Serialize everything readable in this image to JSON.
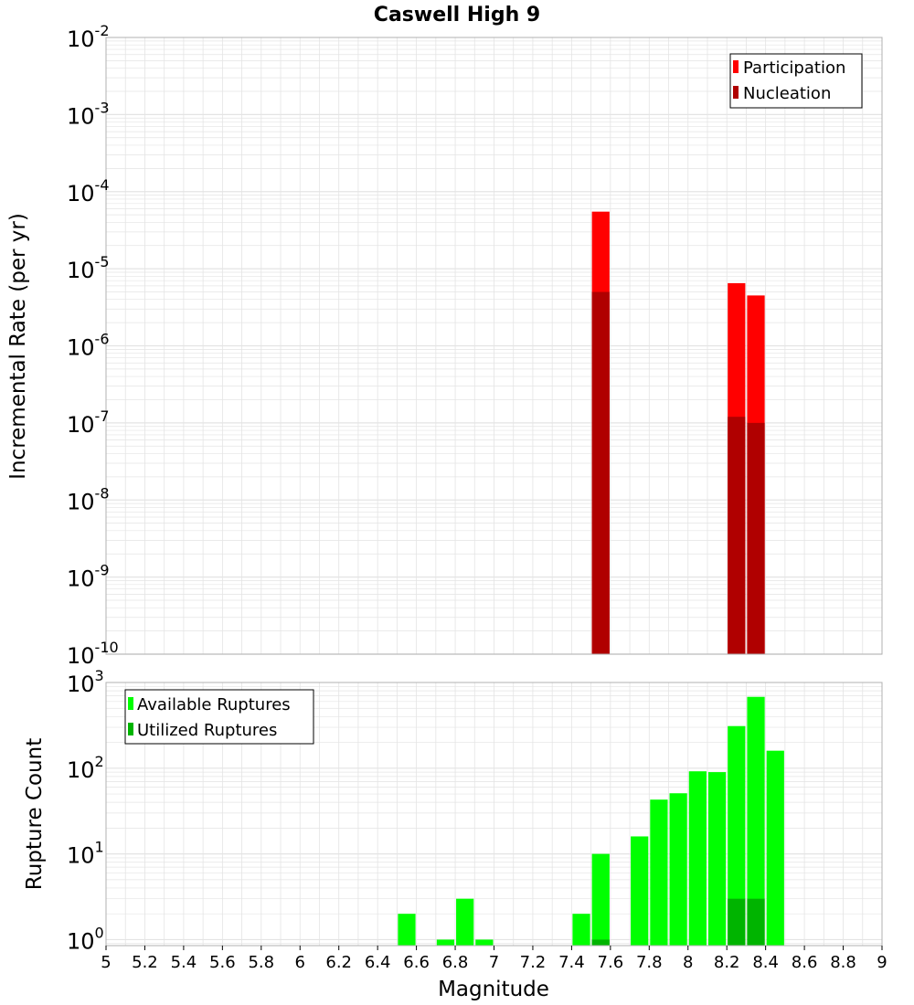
{
  "chart_data": {
    "title": "Caswell High 9",
    "xlabel": "Magnitude",
    "xlim": [
      5,
      9
    ],
    "x_ticks": [
      "5",
      "5.2",
      "5.4",
      "5.6",
      "5.8",
      "6",
      "6.2",
      "6.4",
      "6.6",
      "6.8",
      "7",
      "7.2",
      "7.4",
      "7.6",
      "7.8",
      "8",
      "8.2",
      "8.4",
      "8.6",
      "8.8",
      "9"
    ],
    "bin_width": 0.1,
    "colors": {
      "participation": "#ff0000",
      "nucleation": "#b00000",
      "available": "#00ff00",
      "utilized": "#00b400",
      "grid": "#e4e4e4",
      "frame": "#b0b0b0"
    },
    "panels": [
      {
        "type": "bar",
        "yscale": "log",
        "ylabel": "Incremental Rate (per yr)",
        "ylim_exp": [
          -10,
          -2
        ],
        "y_ticks": [
          {
            "base": "10",
            "exp": "-10"
          },
          {
            "base": "10",
            "exp": "-9"
          },
          {
            "base": "10",
            "exp": "-8"
          },
          {
            "base": "10",
            "exp": "-7"
          },
          {
            "base": "10",
            "exp": "-6"
          },
          {
            "base": "10",
            "exp": "-5"
          },
          {
            "base": "10",
            "exp": "-4"
          },
          {
            "base": "10",
            "exp": "-3"
          },
          {
            "base": "10",
            "exp": "-2"
          }
        ],
        "legend_position": "top-right",
        "series": [
          {
            "name": "Participation",
            "x": [
              7.55,
              8.25,
              8.35
            ],
            "values": [
              5.5e-05,
              6.5e-06,
              4.5e-06
            ]
          },
          {
            "name": "Nucleation",
            "x": [
              7.55,
              8.25,
              8.35
            ],
            "values": [
              5e-06,
              1.2e-07,
              1e-07
            ]
          }
        ]
      },
      {
        "type": "bar",
        "yscale": "log",
        "ylabel": "Rupture Count",
        "ylim_exp": [
          -0.07,
          3
        ],
        "y_ticks": [
          {
            "base": "10",
            "exp": "0"
          },
          {
            "base": "10",
            "exp": "1"
          },
          {
            "base": "10",
            "exp": "2"
          },
          {
            "base": "10",
            "exp": "3"
          }
        ],
        "legend_position": "top-left",
        "series": [
          {
            "name": "Available Ruptures",
            "x": [
              6.55,
              6.75,
              6.85,
              6.95,
              7.45,
              7.55,
              7.75,
              7.85,
              7.95,
              8.05,
              8.15,
              8.25,
              8.35,
              8.45
            ],
            "values": [
              2,
              1,
              3,
              1,
              2,
              10,
              16,
              43,
              51,
              92,
              90,
              310,
              680,
              160
            ]
          },
          {
            "name": "Utilized Ruptures",
            "x": [
              7.55,
              8.25,
              8.35
            ],
            "values": [
              1,
              3,
              3
            ]
          }
        ]
      }
    ]
  }
}
